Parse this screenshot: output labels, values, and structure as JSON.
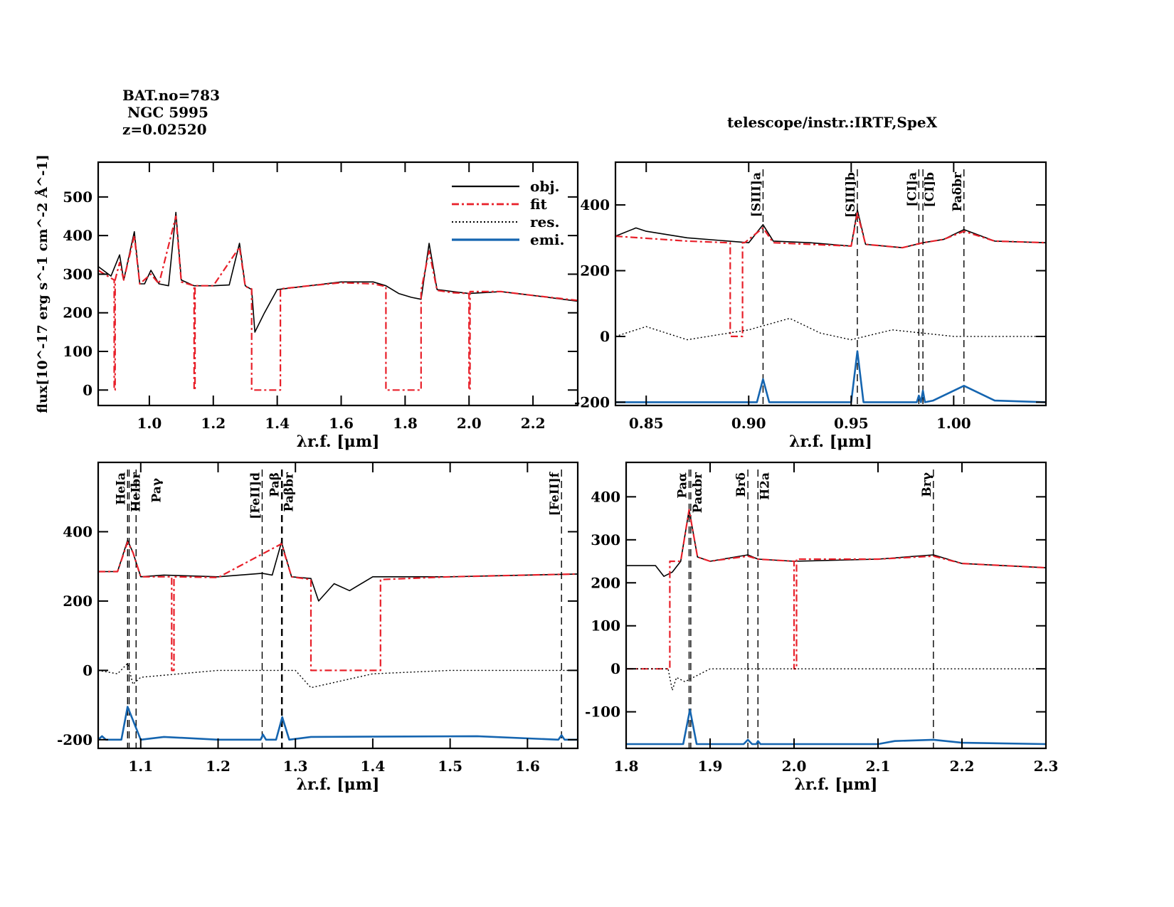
{
  "header": {
    "bat_no": "BAT.no=783",
    "name": " NGC 5995",
    "redshift": "z=0.02520",
    "telescope": "telescope/instr.:IRTF,SpeX"
  },
  "colors": {
    "obj": "#000000",
    "fit": "#e8202a",
    "res": "#000000",
    "emi": "#1565b0"
  },
  "legend": [
    {
      "label": "obj.",
      "style": "solid",
      "color": "#000000"
    },
    {
      "label": "fit",
      "style": "dashdot",
      "color": "#e8202a"
    },
    {
      "label": "res.",
      "style": "dotted",
      "color": "#000000"
    },
    {
      "label": "emi.",
      "style": "solid",
      "color": "#1565b0"
    }
  ],
  "chart_data": [
    {
      "id": "overview",
      "type": "line",
      "xlabel": "λr.f. [μm]",
      "ylabel": "flux[10^-17 erg s^-1 cm^-2 Å^-1]",
      "xlim": [
        0.84,
        2.34
      ],
      "ylim": [
        -40,
        590
      ],
      "xticks": [
        1.0,
        1.2,
        1.4,
        1.6,
        1.8,
        2.0,
        2.2
      ],
      "xtick_labels": [
        "1.0",
        "1.2",
        "1.4",
        "1.6",
        "1.8",
        "2.0",
        "2.2"
      ],
      "yticks": [
        0,
        100,
        200,
        300,
        400,
        500
      ],
      "ytick_labels": [
        "0",
        "100",
        "200",
        "300",
        "400",
        "500"
      ],
      "legend_position": "top-right",
      "series": [
        {
          "name": "obj.",
          "x": [
            0.84,
            0.88,
            0.907,
            0.92,
            0.953,
            0.97,
            0.985,
            1.005,
            1.03,
            1.06,
            1.083,
            1.1,
            1.14,
            1.2,
            1.25,
            1.282,
            1.3,
            1.32,
            1.33,
            1.36,
            1.4,
            1.5,
            1.6,
            1.7,
            1.74,
            1.78,
            1.82,
            1.85,
            1.875,
            1.9,
            1.95,
            2.0,
            2.1,
            2.2,
            2.34
          ],
          "y": [
            320,
            295,
            350,
            285,
            410,
            275,
            275,
            310,
            275,
            270,
            460,
            285,
            270,
            270,
            272,
            380,
            270,
            260,
            150,
            200,
            260,
            270,
            280,
            280,
            270,
            250,
            240,
            235,
            380,
            260,
            255,
            250,
            255,
            245,
            230
          ]
        },
        {
          "name": "fit",
          "x": [
            0.84,
            0.88,
            0.89,
            0.89,
            0.893,
            0.893,
            0.907,
            0.92,
            0.953,
            0.97,
            1.005,
            1.03,
            1.083,
            1.1,
            1.14,
            1.14,
            1.143,
            1.143,
            1.2,
            1.282,
            1.3,
            1.32,
            1.32,
            1.41,
            1.41,
            1.5,
            1.6,
            1.7,
            1.74,
            1.74,
            1.85,
            1.85,
            1.875,
            1.9,
            1.95,
            2.0,
            2.0,
            2.003,
            2.003,
            2.1,
            2.2,
            2.34
          ],
          "y": [
            310,
            290,
            285,
            0,
            0,
            285,
            330,
            285,
            400,
            275,
            300,
            275,
            450,
            280,
            270,
            0,
            0,
            270,
            270,
            370,
            268,
            262,
            0,
            0,
            262,
            270,
            278,
            275,
            268,
            0,
            0,
            258,
            360,
            258,
            252,
            250,
            0,
            0,
            255,
            255,
            245,
            232
          ]
        },
        {
          "name": "emi.",
          "x": [],
          "y": []
        }
      ],
      "gaps_fit_zero": [
        [
          0.89,
          0.893
        ],
        [
          1.14,
          1.143
        ],
        [
          1.32,
          1.41
        ],
        [
          1.74,
          1.85
        ],
        [
          2.0,
          2.003
        ]
      ]
    },
    {
      "id": "zoom-0.84-1.04",
      "type": "line",
      "xlabel": "λr.f. [μm]",
      "xlim": [
        0.835,
        1.045
      ],
      "ylim": [
        -210,
        530
      ],
      "xticks": [
        0.85,
        0.9,
        0.95,
        1.0
      ],
      "xtick_labels": [
        "0.85",
        "0.90",
        "0.95",
        "1.00"
      ],
      "yticks": [
        -200,
        0,
        200,
        400
      ],
      "ytick_labels": [
        "-200",
        "0",
        "200",
        "400"
      ],
      "lines": [
        {
          "label": "[SIII]a",
          "x": 0.907
        },
        {
          "label": "[SIII]b",
          "x": 0.953
        },
        {
          "label": "[CI]a",
          "x": 0.983
        },
        {
          "label": "[CI]b",
          "x": 0.985
        },
        {
          "label": "Paδbr",
          "x": 1.005
        }
      ],
      "series": [
        {
          "name": "obj.",
          "x": [
            0.835,
            0.845,
            0.85,
            0.87,
            0.9,
            0.907,
            0.912,
            0.93,
            0.95,
            0.953,
            0.957,
            0.975,
            0.985,
            0.995,
            1.005,
            1.02,
            1.045
          ],
          "y": [
            305,
            330,
            320,
            300,
            285,
            340,
            290,
            285,
            275,
            385,
            280,
            270,
            285,
            295,
            325,
            290,
            285
          ]
        },
        {
          "name": "fit",
          "x": [
            0.835,
            0.87,
            0.89,
            0.891,
            0.891,
            0.897,
            0.897,
            0.898,
            0.907,
            0.912,
            0.95,
            0.953,
            0.957,
            0.975,
            0.985,
            0.995,
            1.005,
            1.02,
            1.045
          ],
          "y": [
            305,
            290,
            285,
            285,
            0,
            0,
            285,
            285,
            330,
            285,
            275,
            375,
            280,
            270,
            285,
            295,
            320,
            290,
            285
          ]
        },
        {
          "name": "res.",
          "x": [
            0.835,
            0.85,
            0.87,
            0.9,
            0.92,
            0.935,
            0.95,
            0.97,
            1.0,
            1.045
          ],
          "y": [
            0,
            30,
            -10,
            20,
            55,
            10,
            -10,
            20,
            0,
            0
          ]
        },
        {
          "name": "emi.",
          "x": [
            0.835,
            0.904,
            0.907,
            0.91,
            0.95,
            0.953,
            0.956,
            0.982,
            0.983,
            0.984,
            0.985,
            0.986,
            0.99,
            1.005,
            1.02,
            1.045
          ],
          "y": [
            -200,
            -200,
            -130,
            -200,
            -200,
            -45,
            -200,
            -200,
            -180,
            -200,
            -165,
            -200,
            -195,
            -150,
            -195,
            -200
          ]
        }
      ]
    },
    {
      "id": "zoom-1.05-1.66",
      "type": "line",
      "xlabel": "λr.f. [μm]",
      "xlim": [
        1.045,
        1.665
      ],
      "ylim": [
        -225,
        600
      ],
      "xticks": [
        1.1,
        1.2,
        1.3,
        1.4,
        1.5,
        1.6
      ],
      "xtick_labels": [
        "1.1",
        "1.2",
        "1.3",
        "1.4",
        "1.5",
        "1.6"
      ],
      "yticks": [
        -200,
        0,
        200,
        400
      ],
      "ytick_labels": [
        "-200",
        "0",
        "200",
        "400"
      ],
      "lines": [
        {
          "label": "HeIa",
          "x": 1.083
        },
        {
          "label": "HeIbr",
          "x": 1.085
        },
        {
          "label": "Paγ",
          "x": 1.094
        },
        {
          "label": "[FeII]d",
          "x": 1.257
        },
        {
          "label": "Paβ",
          "x": 1.282
        },
        {
          "label": "Paβbr",
          "x": 1.283
        },
        {
          "label": "[FeII]f",
          "x": 1.644
        }
      ],
      "series": [
        {
          "name": "obj.",
          "x": [
            1.045,
            1.07,
            1.083,
            1.09,
            1.1,
            1.13,
            1.2,
            1.257,
            1.27,
            1.282,
            1.295,
            1.32,
            1.33,
            1.35,
            1.37,
            1.4,
            1.5,
            1.6,
            1.665
          ],
          "y": [
            285,
            285,
            375,
            340,
            270,
            275,
            270,
            280,
            275,
            370,
            270,
            265,
            200,
            250,
            230,
            270,
            270,
            275,
            278
          ]
        },
        {
          "name": "fit",
          "x": [
            1.045,
            1.07,
            1.083,
            1.09,
            1.1,
            1.14,
            1.14,
            1.143,
            1.143,
            1.2,
            1.282,
            1.295,
            1.32,
            1.32,
            1.41,
            1.41,
            1.5,
            1.6,
            1.665
          ],
          "y": [
            285,
            285,
            370,
            340,
            270,
            270,
            0,
            0,
            270,
            268,
            365,
            270,
            262,
            0,
            0,
            262,
            270,
            275,
            278
          ]
        },
        {
          "name": "res.",
          "x": [
            1.045,
            1.07,
            1.083,
            1.09,
            1.1,
            1.2,
            1.3,
            1.32,
            1.4,
            1.5,
            1.665
          ],
          "y": [
            0,
            -10,
            20,
            -40,
            -20,
            0,
            0,
            -50,
            -10,
            0,
            0
          ]
        },
        {
          "name": "emi.",
          "x": [
            1.045,
            1.05,
            1.055,
            1.075,
            1.083,
            1.1,
            1.13,
            1.2,
            1.255,
            1.258,
            1.262,
            1.275,
            1.283,
            1.292,
            1.32,
            1.535,
            1.64,
            1.644,
            1.648,
            1.665
          ],
          "y": [
            -200,
            -190,
            -200,
            -200,
            -105,
            -200,
            -192,
            -200,
            -200,
            -185,
            -200,
            -200,
            -135,
            -200,
            -192,
            -190,
            -200,
            -187,
            -200,
            -200
          ]
        }
      ]
    },
    {
      "id": "zoom-1.8-2.3",
      "type": "line",
      "xlabel": "λr.f. [μm]",
      "xlim": [
        1.8,
        2.3
      ],
      "ylim": [
        -185,
        480
      ],
      "xticks": [
        1.8,
        1.9,
        2.0,
        2.1,
        2.2,
        2.3
      ],
      "xtick_labels": [
        "1.8",
        "1.9",
        "2.0",
        "2.1",
        "2.2",
        "2.3"
      ],
      "yticks": [
        -100,
        0,
        100,
        200,
        300,
        400
      ],
      "ytick_labels": [
        "-100",
        "0",
        "100",
        "200",
        "300",
        "400"
      ],
      "lines": [
        {
          "label": "Paα",
          "x": 1.875
        },
        {
          "label": "Paαbr",
          "x": 1.877
        },
        {
          "label": "Brδ",
          "x": 1.945
        },
        {
          "label": "H2a",
          "x": 1.957
        },
        {
          "label": "Brγ",
          "x": 2.166
        }
      ],
      "series": [
        {
          "name": "obj.",
          "x": [
            1.8,
            1.835,
            1.845,
            1.855,
            1.865,
            1.875,
            1.885,
            1.9,
            1.945,
            1.957,
            2.0,
            2.1,
            2.166,
            2.2,
            2.3
          ],
          "y": [
            240,
            240,
            215,
            225,
            250,
            370,
            260,
            250,
            265,
            255,
            250,
            255,
            265,
            245,
            235
          ]
        },
        {
          "name": "fit",
          "x": [
            1.8,
            1.85,
            1.85,
            1.852,
            1.852,
            1.865,
            1.875,
            1.885,
            1.9,
            1.945,
            1.957,
            2.0,
            2.0,
            2.003,
            2.003,
            2.1,
            2.166,
            2.2,
            2.3
          ],
          "y": [
            0,
            0,
            0,
            0,
            250,
            250,
            370,
            260,
            250,
            262,
            255,
            250,
            0,
            0,
            255,
            255,
            262,
            245,
            235
          ]
        },
        {
          "name": "res.",
          "x": [
            1.8,
            1.85,
            1.855,
            1.86,
            1.87,
            1.9,
            2.0,
            2.3
          ],
          "y": [
            0,
            0,
            -50,
            -20,
            -30,
            0,
            0,
            0
          ]
        },
        {
          "name": "emi.",
          "x": [
            1.8,
            1.868,
            1.876,
            1.884,
            1.94,
            1.945,
            1.95,
            1.955,
            1.957,
            1.96,
            2.1,
            2.12,
            2.166,
            2.2,
            2.3
          ],
          "y": [
            -175,
            -175,
            -95,
            -175,
            -175,
            -165,
            -175,
            -175,
            -168,
            -175,
            -175,
            -168,
            -165,
            -172,
            -175
          ]
        }
      ]
    }
  ]
}
